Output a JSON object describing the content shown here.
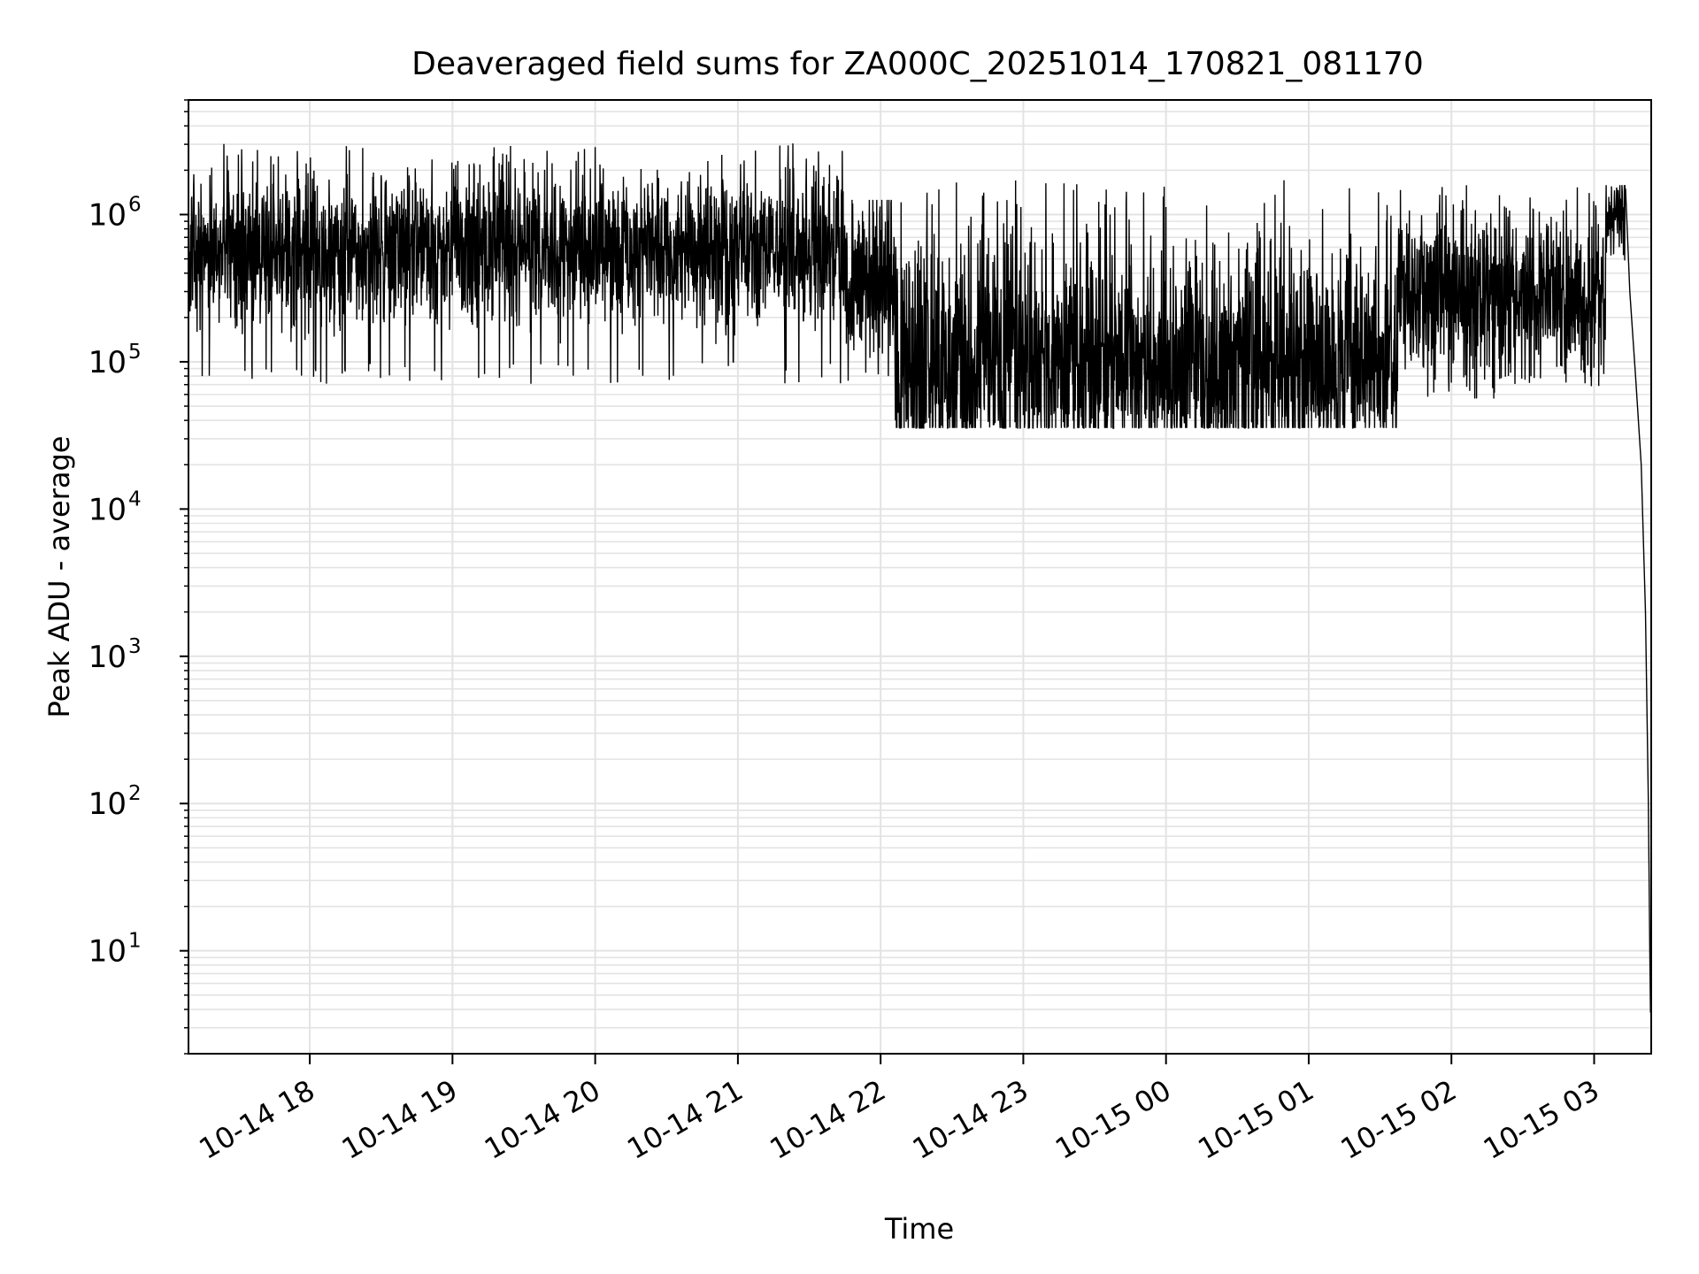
{
  "chart_data": {
    "type": "line",
    "title": "Deaveraged field sums for ZA000C_20251014_170821_081170",
    "xlabel": "Time",
    "ylabel": "Peak ADU - average",
    "y_scale": "log",
    "ylim": [
      2,
      6000000
    ],
    "xlim_hours": [
      17.15,
      27.4
    ],
    "grid": "major and minor",
    "x_ticks": [
      {
        "hour": 18,
        "label": "10-14 18"
      },
      {
        "hour": 19,
        "label": "10-14 19"
      },
      {
        "hour": 20,
        "label": "10-14 20"
      },
      {
        "hour": 21,
        "label": "10-14 21"
      },
      {
        "hour": 22,
        "label": "10-14 22"
      },
      {
        "hour": 23,
        "label": "10-14 23"
      },
      {
        "hour": 24,
        "label": "10-15 00"
      },
      {
        "hour": 25,
        "label": "10-15 01"
      },
      {
        "hour": 26,
        "label": "10-15 02"
      },
      {
        "hour": 27,
        "label": "10-15 03"
      }
    ],
    "y_ticks": [
      {
        "value": 10,
        "base": "10",
        "exp": "1"
      },
      {
        "value": 100,
        "base": "10",
        "exp": "2"
      },
      {
        "value": 1000,
        "base": "10",
        "exp": "3"
      },
      {
        "value": 10000,
        "base": "10",
        "exp": "4"
      },
      {
        "value": 100000,
        "base": "10",
        "exp": "5"
      },
      {
        "value": 1000000,
        "base": "10",
        "exp": "6"
      }
    ],
    "series": [
      {
        "name": "Peak ADU - average",
        "color": "#000000",
        "segments": [
          {
            "start_hour": 17.15,
            "end_hour": 21.75,
            "log10_center": 5.75,
            "log10_spread": 0.35,
            "log10_min": 4.85,
            "log10_max": 6.5
          },
          {
            "start_hour": 21.75,
            "end_hour": 22.1,
            "log10_center": 5.55,
            "log10_spread": 0.45,
            "log10_min": 4.8,
            "log10_max": 6.1
          },
          {
            "start_hour": 22.1,
            "end_hour": 25.62,
            "log10_center": 5.0,
            "log10_spread": 0.6,
            "log10_min": 4.55,
            "log10_max": 6.25
          },
          {
            "start_hour": 25.62,
            "end_hour": 27.08,
            "log10_center": 5.45,
            "log10_spread": 0.4,
            "log10_min": 4.75,
            "log10_max": 6.2
          },
          {
            "start_hour": 27.08,
            "end_hour": 27.22,
            "log10_center": 6.0,
            "log10_spread": 0.2,
            "log10_min": 5.6,
            "log10_max": 6.2
          }
        ],
        "tail": [
          {
            "hour": 27.22,
            "value": 1500000
          },
          {
            "hour": 27.25,
            "value": 300000
          },
          {
            "hour": 27.29,
            "value": 80000
          },
          {
            "hour": 27.33,
            "value": 20000
          },
          {
            "hour": 27.36,
            "value": 2000
          },
          {
            "hour": 27.38,
            "value": 100
          },
          {
            "hour": 27.39,
            "value": 10
          },
          {
            "hour": 27.395,
            "value": 3.8
          }
        ]
      }
    ]
  }
}
